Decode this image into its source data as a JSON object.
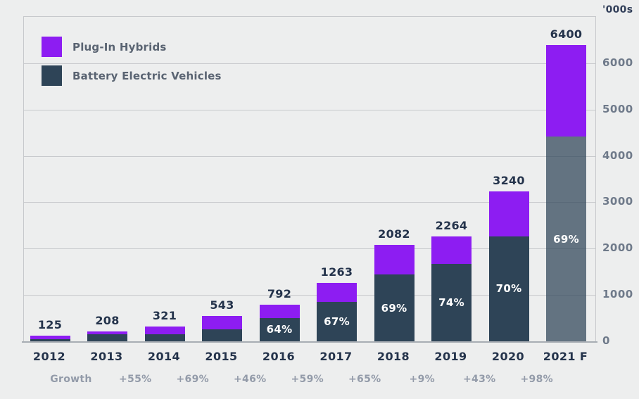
{
  "axis": {
    "unit_label": "'000s",
    "y_ticks": [
      0,
      1000,
      2000,
      3000,
      4000,
      5000,
      6000
    ],
    "ylim": [
      0,
      7000
    ]
  },
  "legend": {
    "items": [
      {
        "label": "Plug-In Hybrids",
        "color": "#8d1df2"
      },
      {
        "label": "Battery Electric Vehicles",
        "color": "#2e4457"
      }
    ]
  },
  "colors": {
    "background": "#edeeee",
    "gridline": "#c7c9cc",
    "axis_line": "#a8adb4",
    "phev": "#8d1df2",
    "bev": "#2e4457",
    "bev_forecast": "rgba(46,68,87,0.72)",
    "value_label": "#24334b",
    "growth_label": "#939ba9",
    "pct_label": "#ffffff"
  },
  "chart_data": {
    "type": "bar",
    "stacked": true,
    "title": "",
    "xlabel": "",
    "ylabel": "'000s",
    "ylim": [
      0,
      7000
    ],
    "grid": true,
    "legend_position": "top-left",
    "categories": [
      "2012",
      "2013",
      "2014",
      "2015",
      "2016",
      "2017",
      "2018",
      "2019",
      "2020",
      "2021 F"
    ],
    "series": [
      {
        "name": "Battery Electric Vehicles",
        "values": [
          50,
          155,
          155,
          260,
          507,
          846,
          1437,
          1675,
          2268,
          4416
        ]
      },
      {
        "name": "Plug-In Hybrids",
        "values": [
          75,
          53,
          166,
          283,
          285,
          417,
          645,
          589,
          972,
          1984
        ]
      }
    ],
    "totals": [
      125,
      208,
      321,
      543,
      792,
      1263,
      2082,
      2264,
      3240,
      6400
    ],
    "bev_pct_labels": [
      null,
      null,
      null,
      null,
      "64%",
      "67%",
      "69%",
      "74%",
      "70%",
      "69%"
    ],
    "forecast_index": 9,
    "growth_row": {
      "label": "Growth",
      "values": [
        "+55%",
        "+69%",
        "+46%",
        "+59%",
        "+65%",
        "+9%",
        "+43%",
        "+98%"
      ],
      "note": "each value sits between consecutive year labels starting at the 2013/2014 gap"
    }
  }
}
